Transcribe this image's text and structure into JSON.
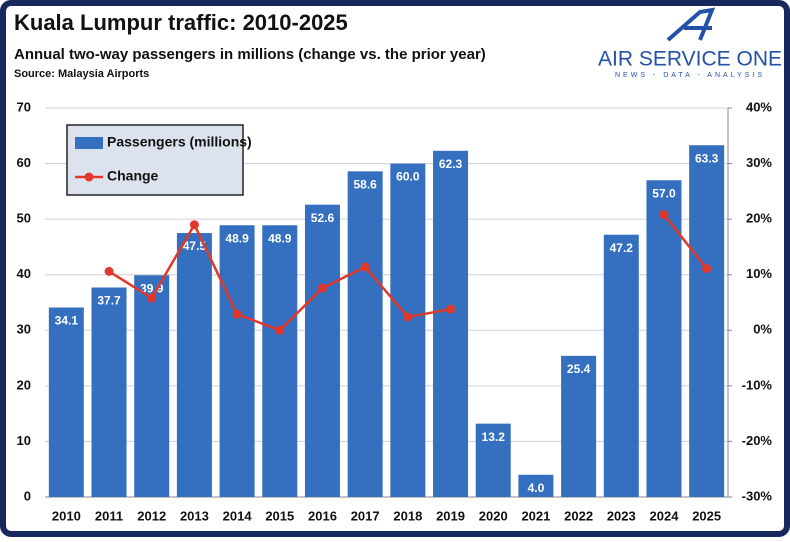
{
  "chart_data": {
    "type": "bar",
    "title": "Kuala Lumpur traffic: 2010-2025",
    "subtitle": "Annual two-way passengers in millions (change vs. the prior year)",
    "source": "Source: Malaysia Airports",
    "logo": {
      "name": "AIR SERVICE ONE",
      "tagline": "NEWS - DATA - ANALYSIS"
    },
    "categories": [
      "2010",
      "2011",
      "2012",
      "2013",
      "2014",
      "2015",
      "2016",
      "2017",
      "2018",
      "2019",
      "2020",
      "2021",
      "2022",
      "2023",
      "2024",
      "2025"
    ],
    "series": [
      {
        "name": "Passengers (millions)",
        "type": "bar",
        "color": "#3570c0",
        "values": [
          34.1,
          37.7,
          39.9,
          47.5,
          48.9,
          48.9,
          52.6,
          58.6,
          60.0,
          62.3,
          13.2,
          4.0,
          25.4,
          47.2,
          57.0,
          63.3
        ],
        "value_labels": [
          "34.1",
          "37.7",
          "39.9",
          "47.5",
          "48.9",
          "48.9",
          "52.6",
          "58.6",
          "60.0",
          "62.3",
          "13.2",
          "4.0",
          "25.4",
          "47.2",
          "57.0",
          "63.3"
        ]
      },
      {
        "name": "Change",
        "type": "line",
        "axis": "y2",
        "color": "#e0392b",
        "values": [
          null,
          10.6,
          5.8,
          19.0,
          2.9,
          0.0,
          7.6,
          11.4,
          2.4,
          3.8,
          null,
          null,
          null,
          null,
          20.8,
          11.1
        ]
      }
    ],
    "ylim": [
      0,
      70
    ],
    "yticks": [
      0,
      10,
      20,
      30,
      40,
      50,
      60,
      70
    ],
    "y2lim": [
      -30,
      40
    ],
    "y2ticks": [
      {
        "value": -30,
        "label": "-30%"
      },
      {
        "value": -20,
        "label": "-20%"
      },
      {
        "value": -10,
        "label": "-10%"
      },
      {
        "value": 0,
        "label": "0%"
      },
      {
        "value": 10,
        "label": "10%"
      },
      {
        "value": 20,
        "label": "20%"
      },
      {
        "value": 30,
        "label": "30%"
      },
      {
        "value": 40,
        "label": "40%"
      }
    ],
    "grid": true,
    "legend": "upper left"
  }
}
